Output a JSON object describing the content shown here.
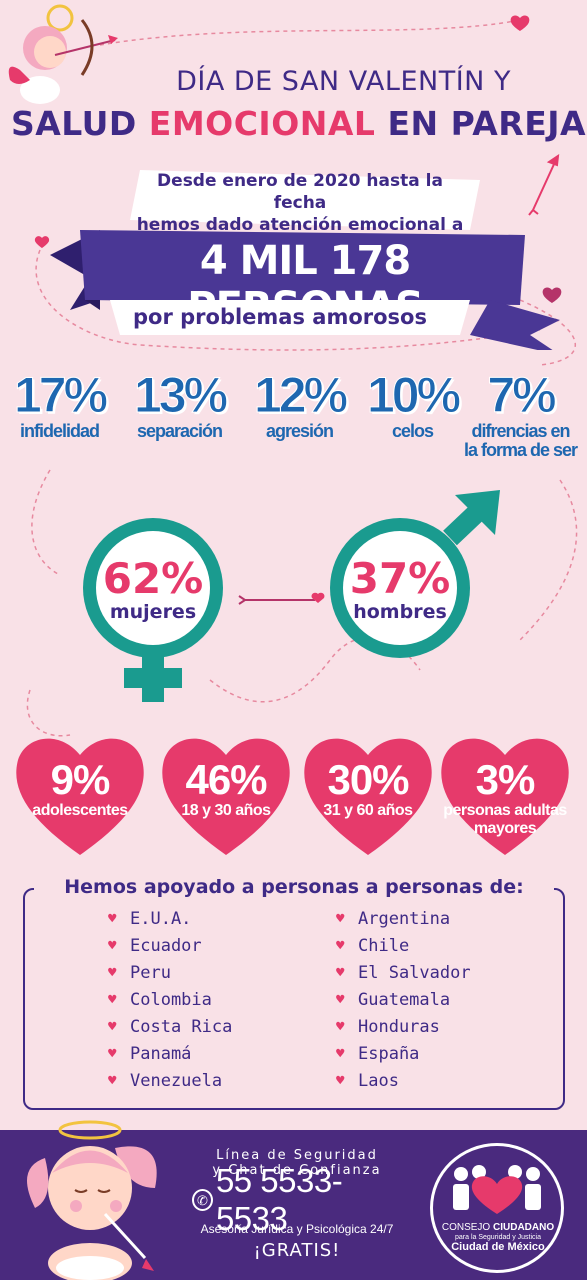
{
  "header": {
    "title_line1": "DÍA DE SAN VALENTÍN Y",
    "title_line2_a": "SALUD ",
    "title_line2_b": "EMOCIONAL",
    "title_line2_c": " EN PAREJA"
  },
  "banner": {
    "top_line1": "Desde enero de 2020 hasta la fecha",
    "top_line2": "hemos dado atención emocional a",
    "big_text": "4 MIL 178 PERSONAS",
    "bottom_text": "por problemas amorosos"
  },
  "reasons": [
    {
      "pct": "17%",
      "label_line1": "infidelidad",
      "label_line2": ""
    },
    {
      "pct": "13%",
      "label_line1": "separación",
      "label_line2": ""
    },
    {
      "pct": "12%",
      "label_line1": "agresión",
      "label_line2": ""
    },
    {
      "pct": "10%",
      "label_line1": "celos",
      "label_line2": ""
    },
    {
      "pct": "7%",
      "label_line1": "difrencias en",
      "label_line2": "la forma de ser"
    }
  ],
  "gender": {
    "women": {
      "pct": "62%",
      "label": "mujeres"
    },
    "men": {
      "pct": "37%",
      "label": "hombres"
    }
  },
  "ages": [
    {
      "pct": "9%",
      "label_line1": "adolescentes",
      "label_line2": ""
    },
    {
      "pct": "46%",
      "label_line1": "18 y 30 años",
      "label_line2": ""
    },
    {
      "pct": "30%",
      "label_line1": "31 y 60 años",
      "label_line2": ""
    },
    {
      "pct": "3%",
      "label_line1": "personas adultas",
      "label_line2": "mayores"
    }
  ],
  "countries": {
    "title": "Hemos apoyado a personas a personas de:",
    "col1": [
      "E.U.A.",
      "Ecuador",
      "Peru",
      "Colombia",
      "Costa Rica",
      "Panamá",
      "Venezuela"
    ],
    "col2": [
      "Argentina",
      "Chile",
      "El Salvador",
      "Guatemala",
      "Honduras",
      "España",
      "Laos"
    ]
  },
  "footer": {
    "line1": "Línea de Seguridad",
    "line2": "y Chat de Confianza",
    "phone": "55 5533-5533",
    "service": "Asesoría Jurídica y Psicológica 24/7",
    "free": "¡GRATIS!",
    "logo_word1": "CONSEJO",
    "logo_word2": "CIUDADANO",
    "logo_sub": "para la Seguridad y Justicia",
    "logo_city": "Ciudad de México"
  },
  "colors": {
    "background": "#f9e1e7",
    "purple": "#3f2a86",
    "pink": "#e63a6b",
    "teal": "#1a9b8f",
    "blue": "#1e67b0",
    "footer": "#4a2a7e"
  }
}
